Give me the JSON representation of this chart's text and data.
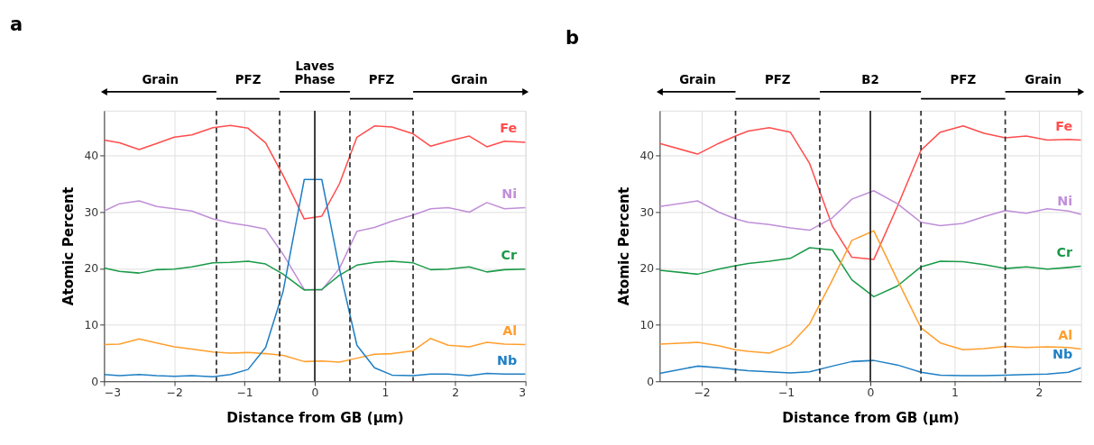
{
  "chart_data": [
    {
      "type": "line",
      "title": "a",
      "xlabel": "Distance from GB (µm)",
      "ylabel": "Atomic Percent",
      "xlim": [
        -3,
        3
      ],
      "xticks": [
        -3,
        -2,
        -1,
        0,
        1,
        2,
        3
      ],
      "ylim": [
        0,
        48
      ],
      "yticks": [
        0,
        10,
        20,
        30,
        40
      ],
      "grid": true,
      "x": [
        -3,
        -2.78,
        -2.5,
        -2.25,
        -2,
        -1.75,
        -1.45,
        -1.2,
        -0.95,
        -0.7,
        -0.45,
        -0.15,
        0.1,
        0.35,
        0.6,
        0.85,
        1.1,
        1.4,
        1.65,
        1.9,
        2.2,
        2.45,
        2.7,
        3
      ],
      "series": [
        {
          "name": "Fe",
          "color": "#ff4d4d",
          "values": [
            42.8,
            42.3,
            41.1,
            42.2,
            43.3,
            43.7,
            45,
            45.4,
            44.9,
            42.3,
            36.5,
            28.8,
            29.3,
            35,
            43.3,
            45.3,
            45.1,
            43.9,
            41.7,
            42.6,
            43.5,
            41.6,
            42.6,
            42.4
          ]
        },
        {
          "name": "Ni",
          "color": "#c08fd8",
          "values": [
            30.2,
            31.5,
            32,
            31,
            30.6,
            30.2,
            28.8,
            28.1,
            27.6,
            27,
            22.5,
            16.3,
            16.2,
            20,
            26.6,
            27.3,
            28.4,
            29.5,
            30.6,
            30.8,
            30,
            31.7,
            30.6,
            30.8
          ]
        },
        {
          "name": "Cr",
          "color": "#1a9a48",
          "values": [
            20.1,
            19.5,
            19.2,
            19.8,
            19.9,
            20.3,
            21,
            21.1,
            21.3,
            20.8,
            19,
            16.2,
            16.3,
            18.8,
            20.6,
            21.1,
            21.3,
            21,
            19.8,
            19.9,
            20.3,
            19.4,
            19.8,
            19.9
          ]
        },
        {
          "name": "Al",
          "color": "#ff9f2e",
          "values": [
            6.5,
            6.6,
            7.5,
            6.8,
            6.1,
            5.7,
            5.2,
            5,
            5.1,
            4.9,
            4.6,
            3.5,
            3.6,
            3.4,
            4.1,
            4.8,
            4.9,
            5.4,
            7.6,
            6.4,
            6.1,
            6.9,
            6.6,
            6.5
          ]
        },
        {
          "name": "Nb",
          "color": "#1f7fc4",
          "values": [
            1.2,
            1,
            1.2,
            1,
            0.9,
            1,
            0.8,
            1.2,
            2.1,
            6,
            16,
            35.8,
            35.8,
            20,
            6.4,
            2.4,
            1.1,
            1,
            1.3,
            1.3,
            1,
            1.4,
            1.3,
            1.3
          ]
        }
      ],
      "ref_lines": [
        {
          "axis": "x",
          "value": -1.4,
          "line_style": "dashed",
          "color": "#333333"
        },
        {
          "axis": "x",
          "value": -0.5,
          "line_style": "dashed",
          "color": "#333333"
        },
        {
          "axis": "x",
          "value": 0,
          "line_style": "solid",
          "color": "#222222"
        },
        {
          "axis": "x",
          "value": 0.5,
          "line_style": "dashed",
          "color": "#333333"
        },
        {
          "axis": "x",
          "value": 1.4,
          "line_style": "dashed",
          "color": "#333333"
        }
      ],
      "annotations": [
        "Grain",
        "PFZ",
        "Laves Phase",
        "PFZ",
        "Grain"
      ]
    },
    {
      "type": "line",
      "title": "b",
      "xlabel": "Distance from GB (µm)",
      "ylabel": "Atomic Percent",
      "xlim": [
        -2.5,
        2.5
      ],
      "xticks": [
        -2,
        -1,
        0,
        1,
        2
      ],
      "ylim": [
        0,
        48
      ],
      "yticks": [
        0,
        10,
        20,
        30,
        40
      ],
      "grid": true,
      "x": [
        -2.5,
        -2.05,
        -1.8,
        -1.6,
        -1.45,
        -1.2,
        -0.95,
        -0.72,
        -0.45,
        -0.22,
        0.04,
        0.32,
        0.6,
        0.83,
        1.1,
        1.35,
        1.6,
        1.85,
        2.1,
        2.35,
        2.5
      ],
      "series": [
        {
          "name": "Fe",
          "color": "#ff4d4d",
          "values": [
            42.2,
            40.3,
            42.2,
            43.5,
            44.4,
            45,
            44.2,
            38.6,
            27.5,
            22,
            21.6,
            31,
            41,
            44.2,
            45.3,
            44,
            43.2,
            43.5,
            42.8,
            42.9,
            42.8
          ]
        },
        {
          "name": "Ni",
          "color": "#c08fd8",
          "values": [
            31,
            32,
            30,
            28.8,
            28.2,
            27.8,
            27.2,
            26.8,
            29,
            32.3,
            33.8,
            31.5,
            28.2,
            27.6,
            28,
            29.2,
            30.3,
            29.8,
            30.6,
            30.2,
            29.6
          ]
        },
        {
          "name": "Cr",
          "color": "#1a9a48",
          "values": [
            19.7,
            19,
            19.9,
            20.5,
            20.9,
            21.3,
            21.8,
            23.7,
            23.3,
            18,
            15,
            16.9,
            20.3,
            21.3,
            21.2,
            20.7,
            20,
            20.3,
            19.9,
            20.2,
            20.4
          ]
        },
        {
          "name": "Al",
          "color": "#ff9f2e",
          "values": [
            6.6,
            6.9,
            6.3,
            5.6,
            5.3,
            5,
            6.5,
            10.2,
            18,
            25,
            26.7,
            18,
            9.5,
            6.8,
            5.6,
            5.8,
            6.2,
            6,
            6.1,
            6,
            5.7
          ]
        },
        {
          "name": "Nb",
          "color": "#1f7fc4",
          "values": [
            1.4,
            2.7,
            2.4,
            2.1,
            1.9,
            1.7,
            1.5,
            1.7,
            2.7,
            3.5,
            3.7,
            2.9,
            1.6,
            1.1,
            1,
            1,
            1.1,
            1.2,
            1.3,
            1.6,
            2.4
          ]
        }
      ],
      "ref_lines": [
        {
          "axis": "x",
          "value": -1.6,
          "line_style": "dashed",
          "color": "#333333"
        },
        {
          "axis": "x",
          "value": -0.6,
          "line_style": "dashed",
          "color": "#333333"
        },
        {
          "axis": "x",
          "value": 0,
          "line_style": "solid",
          "color": "#222222"
        },
        {
          "axis": "x",
          "value": 0.6,
          "line_style": "dashed",
          "color": "#333333"
        },
        {
          "axis": "x",
          "value": 1.6,
          "line_style": "dashed",
          "color": "#333333"
        }
      ],
      "annotations": [
        "Grain",
        "PFZ",
        "B2",
        "PFZ",
        "Grain"
      ]
    }
  ]
}
